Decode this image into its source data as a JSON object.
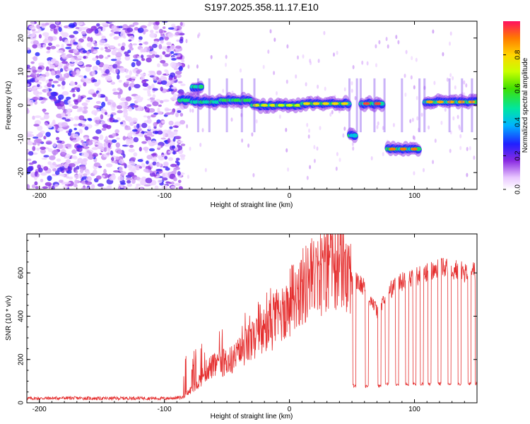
{
  "title": "S197.2025.358.11.17.E10",
  "chart_data": [
    {
      "type": "heatmap",
      "name": "spectrogram",
      "xlabel": "Height of straight line (km)",
      "ylabel": "Frequency (Hz)",
      "xlim": [
        -210,
        150
      ],
      "ylim": [
        -25,
        25
      ],
      "xticks": [
        -200,
        -100,
        0,
        100
      ],
      "yticks": [
        -20,
        -10,
        0,
        10,
        20
      ],
      "colorbar": {
        "label": "Normalized spectral amplitude",
        "range": [
          0,
          1
        ],
        "ticks": [
          0.0,
          0.2,
          0.4,
          0.6,
          0.8
        ]
      },
      "noise_region_km": [
        -210,
        -85
      ],
      "ridge": [
        {
          "x0": -88,
          "x1": -78,
          "freq": 1.5,
          "amp": 0.5
        },
        {
          "x0": -78,
          "x1": -70,
          "freq": 5.5,
          "amp": 0.45
        },
        {
          "x0": -78,
          "x1": -55,
          "freq": 1.0,
          "amp": 0.45
        },
        {
          "x0": -55,
          "x1": -30,
          "freq": 1.5,
          "amp": 0.55
        },
        {
          "x0": -30,
          "x1": -10,
          "freq": 0.0,
          "amp": 0.75
        },
        {
          "x0": -10,
          "x1": 10,
          "freq": 0.0,
          "amp": 0.7
        },
        {
          "x0": 10,
          "x1": 48,
          "freq": 0.5,
          "amp": 0.8
        },
        {
          "x0": 48,
          "x1": 53,
          "freq": -9.0,
          "amp": 0.4
        },
        {
          "x0": 57,
          "x1": 75,
          "freq": 0.5,
          "amp": 0.95
        },
        {
          "x0": 78,
          "x1": 104,
          "freq": -13.0,
          "amp": 0.9
        },
        {
          "x0": 108,
          "x1": 150,
          "freq": 1.0,
          "amp": 0.85
        }
      ]
    },
    {
      "type": "line",
      "name": "snr",
      "xlabel": "Height of straight line (km)",
      "ylabel": "SNR (10 * v/v)",
      "xlim": [
        -210,
        150
      ],
      "ylim": [
        0,
        780
      ],
      "xticks": [
        -200,
        -100,
        0,
        100
      ],
      "yticks": [
        0,
        200,
        400,
        600
      ],
      "color": "#e53030",
      "series": [
        {
          "name": "SNR",
          "x": [
            -210,
            -180,
            -150,
            -120,
            -100,
            -85,
            -75,
            -65,
            -55,
            -45,
            -35,
            -25,
            -15,
            -5,
            5,
            15,
            25,
            35,
            45,
            50,
            55,
            60,
            65,
            70,
            75,
            80,
            90,
            100,
            110,
            120,
            130,
            140,
            150
          ],
          "values": [
            20,
            22,
            20,
            22,
            20,
            25,
            80,
            160,
            180,
            200,
            260,
            300,
            360,
            420,
            500,
            560,
            600,
            640,
            640,
            610,
            550,
            540,
            480,
            420,
            460,
            520,
            560,
            580,
            600,
            620,
            620,
            600,
            610
          ]
        },
        {
          "name": "dropouts_km",
          "x": [
            52,
            62,
            72,
            78,
            86,
            94,
            100,
            106,
            112,
            120,
            128,
            136,
            144,
            150
          ],
          "values": [
            70,
            70,
            70,
            80,
            80,
            80,
            80,
            80,
            80,
            80,
            80,
            80,
            80,
            80
          ]
        }
      ]
    }
  ]
}
